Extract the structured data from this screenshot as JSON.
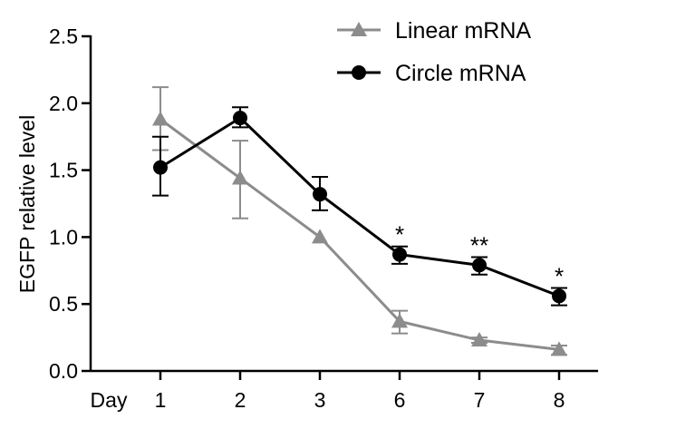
{
  "chart_data": {
    "type": "line",
    "title": "",
    "xlabel": "Day",
    "ylabel": "EGFP relative level",
    "categories": [
      "1",
      "2",
      "3",
      "6",
      "7",
      "8"
    ],
    "ylim": [
      0,
      2.5
    ],
    "yticks": [
      "0.0",
      "0.5",
      "1.0",
      "1.5",
      "2.0",
      "2.5"
    ],
    "grid": false,
    "legend_placement": "top-right",
    "series": [
      {
        "name": "Linear mRNA",
        "color": "#8c8c8c",
        "marker": "triangle",
        "values": [
          1.88,
          1.44,
          1.0,
          0.37,
          0.23,
          0.16
        ],
        "err_upper": [
          2.12,
          1.72,
          1.0,
          0.45,
          0.25,
          0.19
        ],
        "err_lower": [
          1.65,
          1.14,
          1.0,
          0.28,
          0.21,
          0.12
        ]
      },
      {
        "name": "Circle mRNA",
        "color": "#000000",
        "marker": "circle",
        "values": [
          1.52,
          1.89,
          1.32,
          0.87,
          0.79,
          0.56
        ],
        "err_upper": [
          1.75,
          1.97,
          1.45,
          0.93,
          0.85,
          0.62
        ],
        "err_lower": [
          1.31,
          1.82,
          1.2,
          0.8,
          0.72,
          0.49
        ]
      }
    ],
    "annotations": [
      {
        "category": "6",
        "text": "*"
      },
      {
        "category": "7",
        "text": "**"
      },
      {
        "category": "8",
        "text": "*"
      }
    ]
  }
}
